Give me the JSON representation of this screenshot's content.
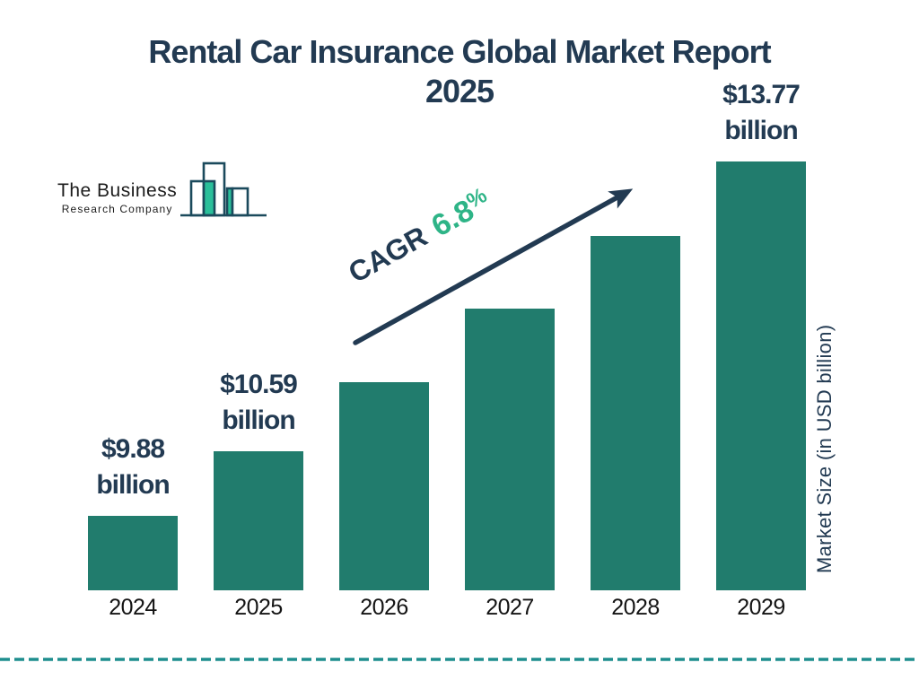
{
  "title": {
    "line1": "Rental Car Insurance Global Market Report",
    "line2": "2025"
  },
  "logo": {
    "name_line1": "The Business",
    "name_line2": "Research Company"
  },
  "cagr": {
    "label": "CAGR",
    "value": "6.8",
    "percent": "%"
  },
  "y_axis_label": "Market Size (in USD billion)",
  "colors": {
    "navy": "#223a52",
    "green": "#2eb487",
    "bar_teal": "#217c6d",
    "dashed_line_teal": "#1f8e8e",
    "logo_teal": "#2abf9a",
    "logo_outline": "#1b4a5c",
    "axis_text": "#141414"
  },
  "chart_data": {
    "type": "bar",
    "title": "Rental Car Insurance Global Market Report 2025",
    "categories": [
      "2024",
      "2025",
      "2026",
      "2027",
      "2028",
      "2029"
    ],
    "values": [
      9.88,
      10.59,
      11.35,
      12.15,
      12.95,
      13.77
    ],
    "value_unit": "USD billion",
    "value_labels": [
      {
        "line1": "$9.88",
        "line2": "billion"
      },
      {
        "line1": "$10.59",
        "line2": "billion"
      },
      null,
      null,
      null,
      {
        "line1": "$13.77",
        "line2": "billion"
      }
    ],
    "xlabel": "",
    "ylabel": "Market Size (in USD billion)",
    "cagr_annotation": "CAGR 6.8%",
    "bar_color": "#217c6d",
    "grid": false,
    "legend": false,
    "baseline_note": "bars drawn from a non-zero baseline; only 2024, 2025 and 2029 carry value labels, middle values estimated from bar heights / 6.8% CAGR"
  }
}
